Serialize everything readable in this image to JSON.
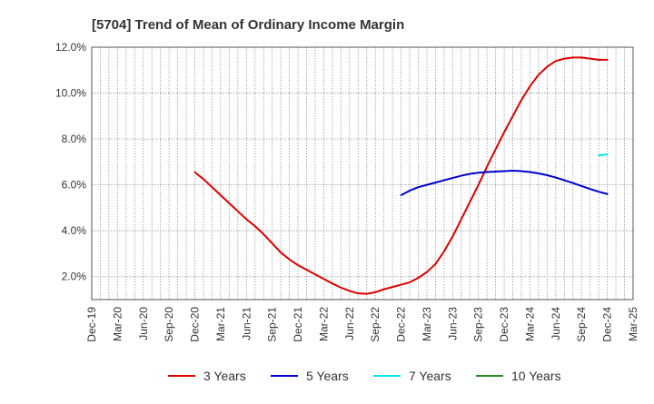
{
  "chart_data": {
    "type": "line",
    "title": "[5704]  Trend of Mean of Ordinary Income Margin",
    "xlabel": "",
    "ylabel": "",
    "x_ticks": [
      "Dec-19",
      "Mar-20",
      "Jun-20",
      "Sep-20",
      "Dec-20",
      "Mar-21",
      "Jun-21",
      "Sep-21",
      "Dec-21",
      "Mar-22",
      "Jun-22",
      "Sep-22",
      "Dec-22",
      "Mar-23",
      "Jun-23",
      "Sep-23",
      "Dec-23",
      "Mar-24",
      "Jun-24",
      "Sep-24",
      "Dec-24",
      "Mar-25"
    ],
    "y_ticks": [
      "2.0%",
      "4.0%",
      "6.0%",
      "8.0%",
      "10.0%",
      "12.0%"
    ],
    "ylim": [
      1.0,
      12.0
    ],
    "grid": true,
    "legend_position": "bottom",
    "series": [
      {
        "name": "3 Years",
        "color": "#dd0000",
        "x": [
          "Dec-20",
          "Jan-21",
          "Feb-21",
          "Mar-21",
          "Apr-21",
          "May-21",
          "Jun-21",
          "Jul-21",
          "Aug-21",
          "Sep-21",
          "Oct-21",
          "Nov-21",
          "Dec-21",
          "Jan-22",
          "Feb-22",
          "Mar-22",
          "Apr-22",
          "May-22",
          "Jun-22",
          "Jul-22",
          "Aug-22",
          "Sep-22",
          "Oct-22",
          "Nov-22",
          "Dec-22",
          "Jan-23",
          "Feb-23",
          "Mar-23",
          "Apr-23",
          "May-23",
          "Jun-23",
          "Jul-23",
          "Aug-23",
          "Sep-23",
          "Oct-23",
          "Nov-23",
          "Dec-23",
          "Jan-24",
          "Feb-24",
          "Mar-24",
          "Apr-24",
          "May-24",
          "Jun-24",
          "Jul-24",
          "Aug-24",
          "Sep-24",
          "Oct-24",
          "Nov-24",
          "Dec-24"
        ],
        "values": [
          6.55,
          6.25,
          5.9,
          5.55,
          5.2,
          4.85,
          4.5,
          4.2,
          3.85,
          3.45,
          3.05,
          2.75,
          2.5,
          2.3,
          2.1,
          1.9,
          1.7,
          1.52,
          1.38,
          1.27,
          1.25,
          1.32,
          1.45,
          1.55,
          1.65,
          1.75,
          1.95,
          2.2,
          2.55,
          3.1,
          3.75,
          4.5,
          5.25,
          6.0,
          6.8,
          7.55,
          8.3,
          9.0,
          9.7,
          10.3,
          10.8,
          11.15,
          11.4,
          11.5,
          11.55,
          11.55,
          11.5,
          11.45,
          11.45
        ]
      },
      {
        "name": "5 Years",
        "color": "#0000cc",
        "x": [
          "Dec-22",
          "Jan-23",
          "Feb-23",
          "Mar-23",
          "Apr-23",
          "May-23",
          "Jun-23",
          "Jul-23",
          "Aug-23",
          "Sep-23",
          "Oct-23",
          "Nov-23",
          "Dec-23",
          "Jan-24",
          "Feb-24",
          "Mar-24",
          "Apr-24",
          "May-24",
          "Jun-24",
          "Jul-24",
          "Aug-24",
          "Sep-24",
          "Oct-24",
          "Nov-24",
          "Dec-24"
        ],
        "values": [
          5.55,
          5.75,
          5.9,
          6.0,
          6.1,
          6.2,
          6.3,
          6.4,
          6.48,
          6.53,
          6.56,
          6.58,
          6.6,
          6.62,
          6.6,
          6.56,
          6.5,
          6.42,
          6.32,
          6.2,
          6.08,
          5.95,
          5.82,
          5.7,
          5.6
        ]
      },
      {
        "name": "7 Years",
        "color": "#00e5ee",
        "x": [
          "Nov-24",
          "Dec-24"
        ],
        "values": [
          7.28,
          7.33
        ]
      },
      {
        "name": "10 Years",
        "color": "#228b22",
        "x": [],
        "values": []
      }
    ]
  }
}
